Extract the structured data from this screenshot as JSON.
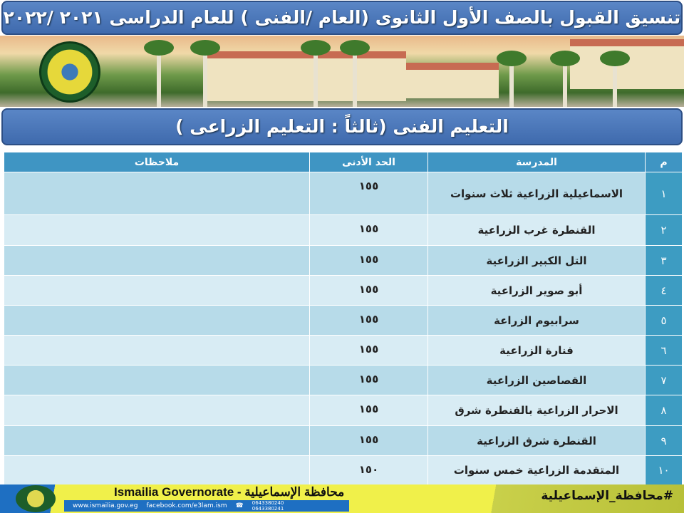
{
  "header": {
    "title": "تنسيق القبول بالصف الأول الثانوى (العام /الفنى ) للعام الدراسى ٢٠٢١ /٢٠٢٢"
  },
  "section": {
    "title": "التعليم الفنى  (ثالثاً : التعليم الزراعى )"
  },
  "table": {
    "columns": [
      "م",
      "المدرسة",
      "الحد الأدنى",
      "ملاحظات"
    ],
    "rows": [
      {
        "n": "١",
        "school": "الاسماعيلية الزراعية ثلاث سنوات",
        "min": "١٥٥",
        "notes": ""
      },
      {
        "n": "٢",
        "school": "القنطرة غرب الزراعية",
        "min": "١٥٥",
        "notes": ""
      },
      {
        "n": "٣",
        "school": "التل الكبير الزراعية",
        "min": "١٥٥",
        "notes": ""
      },
      {
        "n": "٤",
        "school": "أبو صوير الزراعية",
        "min": "١٥٥",
        "notes": ""
      },
      {
        "n": "٥",
        "school": "سرابيوم الزراعة",
        "min": "١٥٥",
        "notes": ""
      },
      {
        "n": "٦",
        "school": "فنارة الزراعية",
        "min": "١٥٥",
        "notes": ""
      },
      {
        "n": "٧",
        "school": "القصاصين الزراعية",
        "min": "١٥٥",
        "notes": ""
      },
      {
        "n": "٨",
        "school": "الاحرار الزراعية بالقنطرة شرق",
        "min": "١٥٥",
        "notes": ""
      },
      {
        "n": "٩",
        "school": "القنطرة شرق الزراعية",
        "min": "١٥٥",
        "notes": ""
      },
      {
        "n": "١٠",
        "school": "المتقدمة الزراعية خمس سنوات",
        "min": "١٥٠",
        "notes": ""
      }
    ]
  },
  "footer": {
    "name": "Ismailia Governorate - محافظة الإسماعيلية",
    "website": "www.ismailia.gov.eg",
    "facebook": "facebook.com/e3lam.ism",
    "phone1": "0643380240",
    "phone2": "0643380241",
    "hashtag": "#محافظة_الإسماعيلية"
  }
}
